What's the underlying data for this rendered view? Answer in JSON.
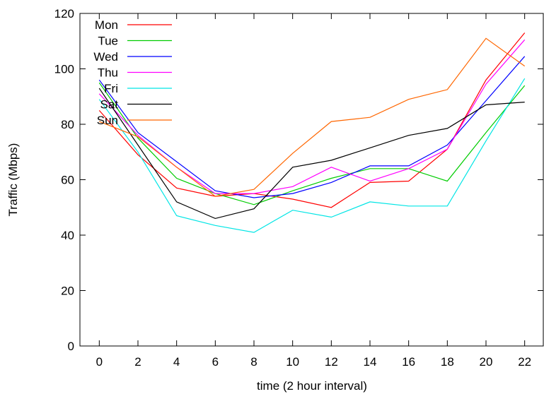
{
  "chart_data": {
    "type": "line",
    "xlabel": "time (2 hour interval)",
    "ylabel": "Traffic (Mbps)",
    "x": [
      0,
      2,
      4,
      6,
      8,
      10,
      12,
      14,
      16,
      18,
      20,
      22
    ],
    "xlim": [
      -1,
      23
    ],
    "ylim": [
      0,
      120
    ],
    "xticks": [
      0,
      2,
      4,
      6,
      8,
      10,
      12,
      14,
      16,
      18,
      20,
      22
    ],
    "yticks": [
      0,
      20,
      40,
      60,
      80,
      100,
      120
    ],
    "grid": false,
    "legend_position": "top-left",
    "series": [
      {
        "name": "Mon",
        "color": "#ff0000",
        "values": [
          85,
          69,
          57,
          54,
          55,
          53,
          50,
          59,
          59.5,
          71,
          96,
          113
        ]
      },
      {
        "name": "Tue",
        "color": "#00cc00",
        "values": [
          95,
          75,
          60.5,
          55,
          51,
          56,
          60.5,
          64,
          64,
          59.5,
          77,
          94
        ]
      },
      {
        "name": "Wed",
        "color": "#0000ff",
        "values": [
          96,
          77,
          66.5,
          56,
          53.5,
          55,
          59,
          65,
          65,
          72.5,
          88.5,
          104.5
        ]
      },
      {
        "name": "Thu",
        "color": "#ff00ff",
        "values": [
          91,
          76,
          64.5,
          55,
          55,
          57.5,
          64.5,
          59.5,
          64,
          71,
          94.5,
          110.5
        ]
      },
      {
        "name": "Fri",
        "color": "#00e5e5",
        "values": [
          89,
          70,
          47,
          43.5,
          41,
          49,
          46.5,
          52,
          50.5,
          50.5,
          74,
          96.5
        ]
      },
      {
        "name": "Sat",
        "color": "#000000",
        "values": [
          93,
          72.5,
          52,
          46,
          49.5,
          64.5,
          67,
          71.5,
          76,
          78.5,
          87,
          88
        ]
      },
      {
        "name": "Sun",
        "color": "#ff6600",
        "values": [
          81,
          75.5,
          64.5,
          54,
          56.5,
          69.5,
          81,
          82.5,
          89,
          92.5,
          111,
          101
        ]
      }
    ]
  }
}
